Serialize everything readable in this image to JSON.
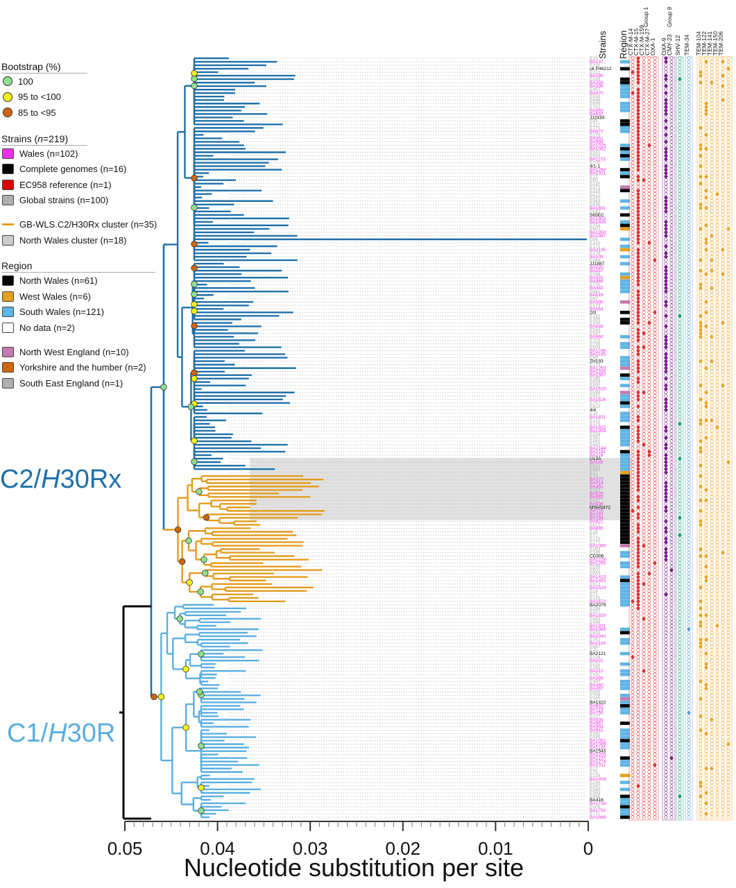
{
  "legend": {
    "bootstrap": {
      "title": "Bootstrap (%)",
      "items": [
        {
          "label": "100",
          "color": "#8fe08f"
        },
        {
          "label": "95 to <100",
          "color": "#f7f21a"
        },
        {
          "label": "85 to <95",
          "color": "#d0650f"
        }
      ]
    },
    "strains": {
      "title": "Strains (n=219)",
      "items": [
        {
          "label": "Wales (n=102)",
          "color": "#ee2ee8"
        },
        {
          "label": "Complete genomes (n=16)",
          "color": "#000000"
        },
        {
          "label": "EC958 reference (n=1)",
          "color": "#e00000"
        },
        {
          "label": "Global strains (n=100)",
          "color": "#b0b0b0"
        }
      ]
    },
    "clusters": {
      "items": [
        {
          "label": "GB-WLS.C2/H30Rx cluster (n=35)",
          "color": "#e39b1c",
          "kind": "line"
        },
        {
          "label": "North Wales cluster (n=18)",
          "color": "#cccccc",
          "kind": "square"
        }
      ]
    },
    "region": {
      "title": "Region",
      "items": [
        {
          "label": "North Wales (n=61)",
          "color": "#000000"
        },
        {
          "label": "West Wales (n=6)",
          "color": "#e6a020"
        },
        {
          "label": "South Wales (n=121)",
          "color": "#5db6e6"
        },
        {
          "label": "No data (n=2)",
          "color": "#ffffff"
        }
      ]
    },
    "region_other": {
      "items": [
        {
          "label": "North West England (n=10)",
          "color": "#c47bb0"
        },
        {
          "label": "Yorkshire and the humber (n=2)",
          "color": "#d0650f"
        },
        {
          "label": "South East England (n=1)",
          "color": "#b0b0b0"
        }
      ]
    }
  },
  "clades": {
    "c2": {
      "label": "C2/H30Rx",
      "color": "#1f6fa8"
    },
    "c1": {
      "label": "C1/H30R",
      "color": "#5aaee0"
    }
  },
  "axis": {
    "label": "Nucleotide substitution per site",
    "ticks": [
      "0.05",
      "0.04",
      "0.03",
      "0.02",
      "0.01",
      "0"
    ]
  },
  "columns": {
    "strains": "Strains",
    "region": "Region",
    "genes": [
      "CTX-M-14",
      "CTX-M-15",
      "CTX-M-159",
      "CTX-M-27",
      "OXA-1",
      "OXA-9",
      "CMY-23",
      "SHV-12",
      "TEM-34",
      "TEM-104",
      "TEM-122",
      "TEM-141",
      "TEM-150",
      "TEM-206"
    ],
    "group_labels": [
      "Group 1",
      "Group 9"
    ]
  },
  "visible_tip_labels": [
    "uk P46212",
    "JJ2434",
    "4/1-1",
    "S65EC",
    "JJ1887",
    "2/0",
    "ZH193",
    "4/4",
    "U13A",
    "MSHS472",
    "CD306",
    "BA2079",
    "BA2121",
    "BA1422",
    "BA1543",
    "BA416",
    "BA1570",
    "BA1606",
    "BA2133"
  ],
  "colors": {
    "c2_branch": "#1f6fa8",
    "c1_branch": "#5aaee0",
    "cluster_branch": "#e39b1c",
    "highlight": "#d6d6d6",
    "ctx_panel": "#e23030",
    "oxa_panel": "#7a1a8a",
    "cmy_panel": "#1a9a7a",
    "tem_panel": "#f0a020"
  }
}
